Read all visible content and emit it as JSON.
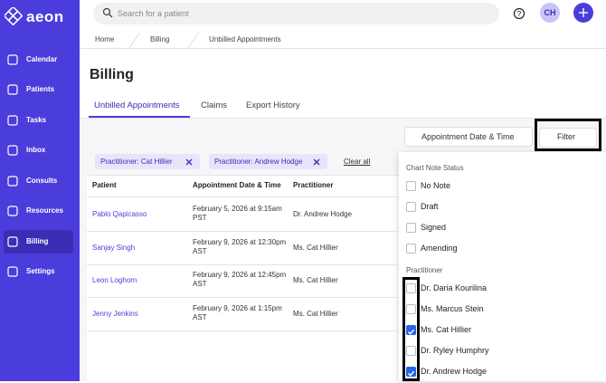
{
  "sidebar": {
    "logo": "aeon",
    "items": [
      {
        "label": "Calendar",
        "active": false
      },
      {
        "label": "Patients",
        "active": false
      },
      {
        "label": "Tasks",
        "active": false
      },
      {
        "label": "Inbox",
        "active": false
      },
      {
        "label": "Consults",
        "active": false
      },
      {
        "label": "Resources",
        "active": false
      },
      {
        "label": "Billing",
        "active": true
      },
      {
        "label": "Settings",
        "active": false
      }
    ]
  },
  "topbar": {
    "search_placeholder": "Search for a patient",
    "avatar": "CH"
  },
  "breadcrumb": [
    "Home",
    "Billing",
    "Unbilled Appointments"
  ],
  "page_title": "Billing",
  "tabs": [
    {
      "label": "Unbilled Appointments",
      "active": true
    },
    {
      "label": "Claims",
      "active": false
    },
    {
      "label": "Export History",
      "active": false
    }
  ],
  "sort_button": "Appointment Date & Time",
  "filter_button": "Filter",
  "chips": [
    "Practitioner: Cat Hillier",
    "Practitioner: Andrew Hodge"
  ],
  "clear_all": "Clear all",
  "table": {
    "columns": [
      "Patient",
      "Appointment Date & Time",
      "Practitioner"
    ],
    "rows": [
      [
        "Pablo Qapicasso",
        "February 5, 2026 at 9:15am PST",
        "Dr. Andrew Hodge"
      ],
      [
        "Sanjay Singh",
        "February 9, 2026 at 12:30pm AST",
        "Ms. Cat Hillier"
      ],
      [
        "Leon Loghorn",
        "February 9, 2026 at 12:45pm AST",
        "Ms. Cat Hillier"
      ],
      [
        "Jenny Jenkins",
        "February 9, 2026 at 1:15pm AST",
        "Ms. Cat Hillier"
      ]
    ]
  },
  "filter_panel": {
    "sections": [
      {
        "title": "Chart Note Status",
        "options": [
          {
            "label": "No Note",
            "checked": false
          },
          {
            "label": "Draft",
            "checked": false
          },
          {
            "label": "Signed",
            "checked": false
          },
          {
            "label": "Amending",
            "checked": false
          }
        ]
      },
      {
        "title": "Practitioner",
        "options": [
          {
            "label": "Dr. Daria Kourilina",
            "checked": false
          },
          {
            "label": "Ms. Marcus Stein",
            "checked": false
          },
          {
            "label": "Ms. Cat Hillier",
            "checked": true
          },
          {
            "label": "Dr. Ryley Humphry",
            "checked": false
          },
          {
            "label": "Dr. Andrew Hodge",
            "checked": true
          }
        ]
      }
    ]
  }
}
